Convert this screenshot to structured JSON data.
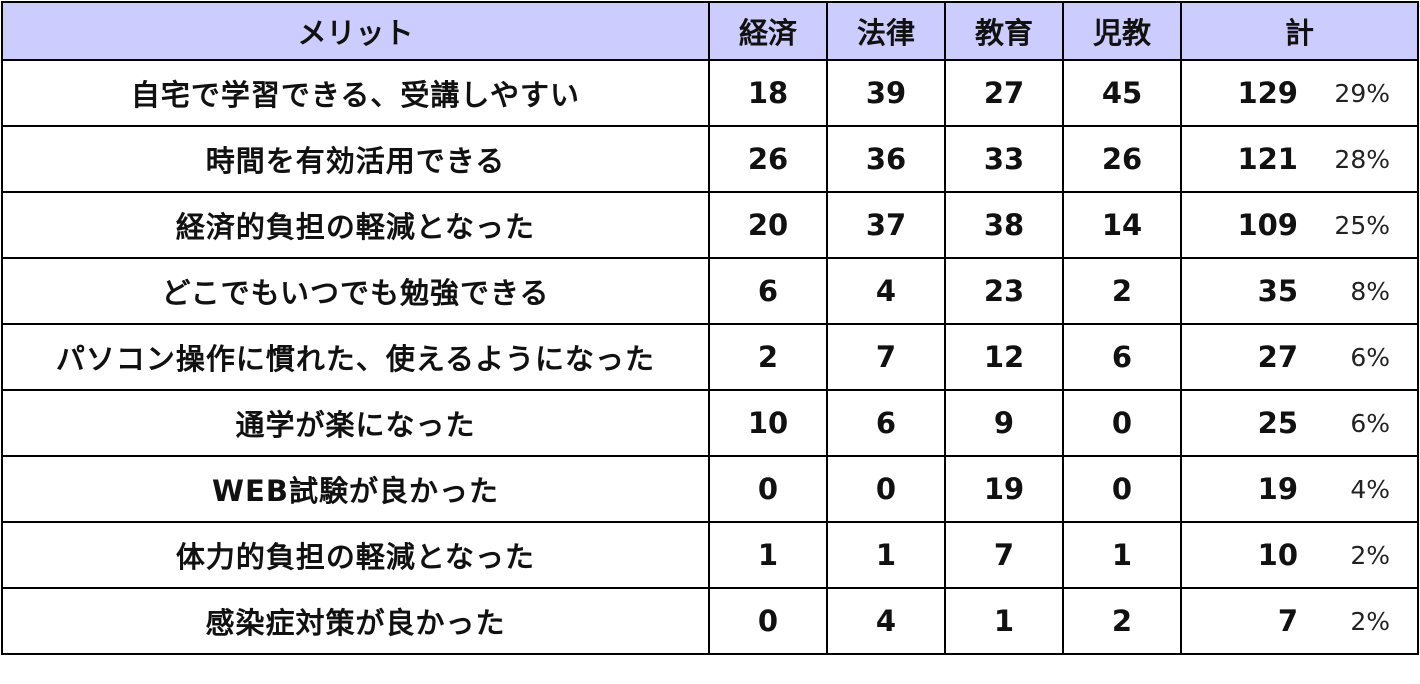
{
  "colors": {
    "header_bg": "#ccccff",
    "border": "#000000",
    "text": "#111111"
  },
  "table": {
    "headers": [
      "メリット",
      "経済",
      "法律",
      "教育",
      "児教",
      "計"
    ],
    "rows": [
      {
        "label": "自宅で学習できる、受講しやすい",
        "values": [
          "18",
          "39",
          "27",
          "45"
        ],
        "total": "129",
        "percent": "29%"
      },
      {
        "label": "時間を有効活用できる",
        "values": [
          "26",
          "36",
          "33",
          "26"
        ],
        "total": "121",
        "percent": "28%"
      },
      {
        "label": "経済的負担の軽減となった",
        "values": [
          "20",
          "37",
          "38",
          "14"
        ],
        "total": "109",
        "percent": "25%"
      },
      {
        "label": "どこでもいつでも勉強できる",
        "values": [
          "6",
          "4",
          "23",
          "2"
        ],
        "total": "35",
        "percent": "8%"
      },
      {
        "label": "パソコン操作に慣れた、使えるようになった",
        "values": [
          "2",
          "7",
          "12",
          "6"
        ],
        "total": "27",
        "percent": "6%"
      },
      {
        "label": "通学が楽になった",
        "values": [
          "10",
          "6",
          "9",
          "0"
        ],
        "total": "25",
        "percent": "6%"
      },
      {
        "label": "WEB試験が良かった",
        "values": [
          "0",
          "0",
          "19",
          "0"
        ],
        "total": "19",
        "percent": "4%"
      },
      {
        "label": "体力的負担の軽減となった",
        "values": [
          "1",
          "1",
          "7",
          "1"
        ],
        "total": "10",
        "percent": "2%"
      },
      {
        "label": "感染症対策が良かった",
        "values": [
          "0",
          "4",
          "1",
          "2"
        ],
        "total": "7",
        "percent": "2%"
      }
    ]
  }
}
